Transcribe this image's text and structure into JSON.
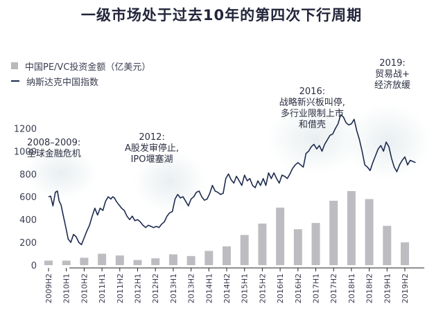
{
  "chart_data": {
    "type": "bar",
    "title": "一级市场处于过去10年的第四次下行周期",
    "ylim": [
      0,
      1400
    ],
    "yticks": [
      "0",
      "200",
      "400",
      "600",
      "800",
      "1000",
      "1200"
    ],
    "categories": [
      "2009H2",
      "2010H1",
      "2010H2",
      "2011H1",
      "2011H2",
      "2012H1",
      "2012H2",
      "2013H1",
      "2013H2",
      "2014H1",
      "2014H2",
      "2015H1",
      "2015H2",
      "2016H1",
      "2016H2",
      "2017H1",
      "2017H2",
      "2018H1",
      "2018H2",
      "2019H1",
      "2019H2"
    ],
    "series": [
      {
        "name": "中国PE/VC投资金额（亿美元）",
        "kind": "bar",
        "color": "#bdbdc1",
        "values": [
          40,
          40,
          65,
          100,
          85,
          45,
          60,
          95,
          80,
          125,
          165,
          265,
          365,
          505,
          315,
          370,
          565,
          650,
          580,
          345,
          200
        ]
      },
      {
        "name": "纳斯达克中国指数",
        "kind": "line",
        "color": "#1d2a4e",
        "x": [
          0.0,
          0.12,
          0.25,
          0.38,
          0.5,
          0.6,
          0.7,
          0.85,
          1.0,
          1.1,
          1.25,
          1.4,
          1.55,
          1.7,
          1.85,
          2.0,
          2.15,
          2.3,
          2.45,
          2.6,
          2.75,
          2.9,
          3.05,
          3.2,
          3.35,
          3.5,
          3.6,
          3.7,
          3.8,
          3.95,
          4.1,
          4.25,
          4.4,
          4.55,
          4.7,
          4.85,
          5.0,
          5.15,
          5.3,
          5.45,
          5.6,
          5.75,
          5.9,
          6.05,
          6.2,
          6.35,
          6.5,
          6.65,
          6.8,
          6.95,
          7.1,
          7.25,
          7.4,
          7.55,
          7.7,
          7.85,
          8.0,
          8.15,
          8.3,
          8.45,
          8.6,
          8.75,
          8.9,
          9.05,
          9.2,
          9.35,
          9.5,
          9.65,
          9.8,
          9.95,
          10.1,
          10.25,
          10.4,
          10.55,
          10.7,
          10.85,
          11.0,
          11.15,
          11.3,
          11.45,
          11.6,
          11.75,
          11.9,
          12.05,
          12.2,
          12.35,
          12.5,
          12.65,
          12.8,
          12.95,
          13.1,
          13.25,
          13.4,
          13.55,
          13.7,
          13.85,
          14.0,
          14.15,
          14.3,
          14.45,
          14.6,
          14.75,
          14.9,
          15.05,
          15.2,
          15.35,
          15.5,
          15.65,
          15.8,
          15.95,
          16.1,
          16.25,
          16.4,
          16.55,
          16.7,
          16.85,
          17.0,
          17.15,
          17.3,
          17.45,
          17.6,
          17.75,
          17.9,
          18.05,
          18.2,
          18.35,
          18.5,
          18.65,
          18.8,
          18.95,
          19.1,
          19.25,
          19.4,
          19.55,
          19.7,
          19.85,
          20.0,
          20.15,
          20.3,
          20.45,
          20.6
        ],
        "values": [
          600,
          605,
          520,
          640,
          650,
          560,
          530,
          420,
          310,
          230,
          200,
          270,
          250,
          200,
          180,
          240,
          300,
          350,
          430,
          500,
          440,
          500,
          480,
          560,
          600,
          580,
          600,
          590,
          560,
          530,
          500,
          480,
          430,
          400,
          430,
          390,
          400,
          380,
          350,
          330,
          350,
          340,
          330,
          340,
          330,
          360,
          380,
          430,
          460,
          470,
          580,
          620,
          590,
          600,
          560,
          520,
          580,
          600,
          640,
          650,
          600,
          570,
          580,
          630,
          700,
          650,
          640,
          620,
          630,
          760,
          800,
          750,
          720,
          780,
          740,
          700,
          790,
          740,
          760,
          700,
          680,
          740,
          700,
          760,
          700,
          810,
          760,
          810,
          760,
          720,
          790,
          780,
          760,
          800,
          850,
          880,
          900,
          880,
          860,
          980,
          1000,
          1040,
          1060,
          1020,
          1050,
          1000,
          1060,
          1100,
          1140,
          1150,
          1200,
          1240,
          1320,
          1300,
          1250,
          1230,
          1240,
          1280,
          1180,
          1100,
          1000,
          880,
          860,
          830,
          900,
          960,
          1020,
          1050,
          1000,
          1080,
          1040,
          940,
          860,
          820,
          880,
          920,
          950,
          880,
          920,
          910,
          900
        ]
      }
    ],
    "annotations": [
      {
        "lines": [
          "2008–2009:",
          "全球金融危机"
        ],
        "at": 0.3,
        "yv": 1050
      },
      {
        "lines": [
          "2012:",
          "A股发审停止,",
          "IPO堰塞湖"
        ],
        "at": 5.8,
        "yv": 1100
      },
      {
        "lines": [
          "2016:",
          "战略新兴板叫停,",
          "多行业限制上市",
          "和借壳"
        ],
        "at": 14.8,
        "yv": 1500
      },
      {
        "lines": [
          "2019:",
          "贸易战+",
          "经济放缓"
        ],
        "at": 19.3,
        "yv": 1750
      }
    ]
  }
}
